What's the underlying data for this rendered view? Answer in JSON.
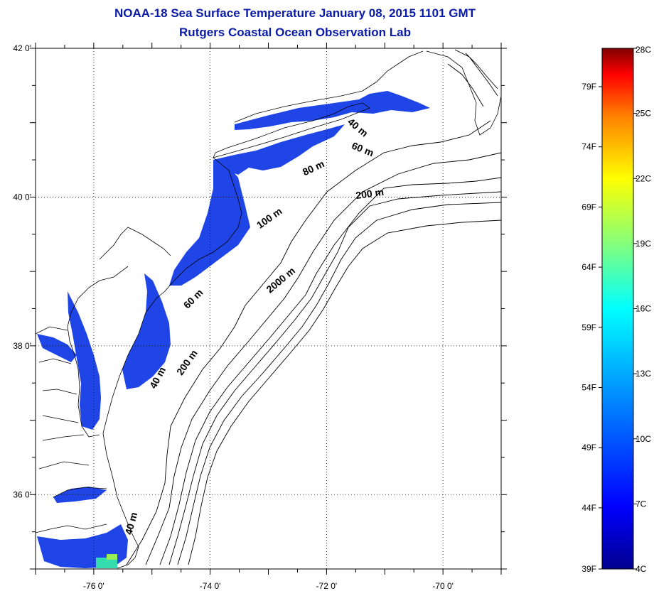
{
  "title": "NOAA-18 Sea Surface Temperature January 08, 2015 1101 GMT",
  "subtitle": "Rutgers Coastal Ocean Observation Lab",
  "map": {
    "lon_range": [
      -77.0,
      -69.0
    ],
    "lat_range": [
      35.0,
      42.0
    ],
    "lat_ticks": [
      {
        "value": 42,
        "label": "42 0'"
      },
      {
        "value": 40,
        "label": "40 0'"
      },
      {
        "value": 38,
        "label": "38 0'"
      },
      {
        "value": 36,
        "label": "36 0'"
      }
    ],
    "lon_ticks": [
      {
        "value": -76,
        "label": "-76 0'"
      },
      {
        "value": -74,
        "label": "-74 0'"
      },
      {
        "value": -72,
        "label": "-72 0'"
      },
      {
        "value": -70,
        "label": "-70 0'"
      }
    ],
    "gridlines": true,
    "isobath_labels": [
      {
        "text": "40 m",
        "lon": -71.5,
        "lat": 40.9,
        "angle": 40
      },
      {
        "text": "60 m",
        "lon": -71.4,
        "lat": 40.6,
        "angle": 22
      },
      {
        "text": "80 m",
        "lon": -72.2,
        "lat": 40.35,
        "angle": -25
      },
      {
        "text": "200 m",
        "lon": -71.25,
        "lat": 40.0,
        "angle": -8
      },
      {
        "text": "100 m",
        "lon": -72.95,
        "lat": 39.68,
        "angle": -35
      },
      {
        "text": "2000 m",
        "lon": -72.75,
        "lat": 38.85,
        "angle": -40
      },
      {
        "text": "60 m",
        "lon": -74.25,
        "lat": 38.6,
        "angle": -45
      },
      {
        "text": "200 m",
        "lon": -74.35,
        "lat": 37.75,
        "angle": -55
      },
      {
        "text": "40 m",
        "lon": -74.85,
        "lat": 37.55,
        "angle": -62
      },
      {
        "text": "40 m",
        "lon": -75.3,
        "lat": 35.6,
        "angle": -75
      }
    ]
  },
  "colorbar": {
    "celsius_labels": [
      "28C",
      "25C",
      "22C",
      "19C",
      "16C",
      "13C",
      "10C",
      "7C",
      "4C"
    ],
    "fahrenheit_labels": [
      "79F",
      "74F",
      "69F",
      "64F",
      "59F",
      "54F",
      "49F",
      "44F",
      "39F"
    ],
    "colors": [
      "#7f0000",
      "#ff0000",
      "#ff8000",
      "#ffff00",
      "#80ff80",
      "#00ffff",
      "#0080ff",
      "#0000ff",
      "#00008f"
    ]
  }
}
